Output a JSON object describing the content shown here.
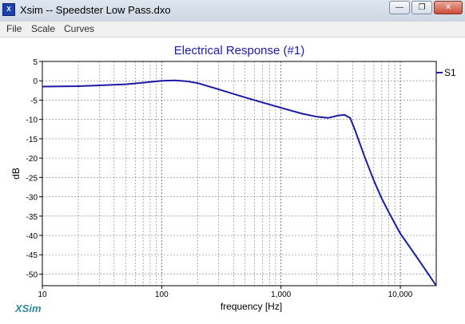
{
  "window": {
    "title": "Xsim -- Speedster Low Pass.dxo",
    "icon": "xsim-app-icon",
    "controls": [
      "minimize-icon",
      "restore-icon",
      "close-icon"
    ]
  },
  "menu": {
    "items": [
      {
        "label": "File"
      },
      {
        "label": "Scale"
      },
      {
        "label": "Curves"
      }
    ]
  },
  "brand": "XSim",
  "chart_data": {
    "type": "line",
    "title": "Electrical Response (#1)",
    "xlabel": "frequency [Hz]",
    "ylabel": "dB",
    "xscale": "log",
    "xlim": [
      10,
      20000
    ],
    "ylim": [
      -53,
      5
    ],
    "x_ticks": [
      {
        "value": 10,
        "label": "10"
      },
      {
        "value": 100,
        "label": "100"
      },
      {
        "value": 1000,
        "label": "1,000"
      },
      {
        "value": 10000,
        "label": "10,000"
      }
    ],
    "y_ticks": [
      5,
      0,
      -5,
      -10,
      -15,
      -20,
      -25,
      -30,
      -35,
      -40,
      -45,
      -50
    ],
    "grid": true,
    "legend_position": "right",
    "series": [
      {
        "name": "S1",
        "color": "#1a1aa6",
        "x": [
          10,
          20,
          30,
          50,
          70,
          100,
          130,
          160,
          200,
          300,
          500,
          700,
          1000,
          1500,
          2000,
          2500,
          3000,
          3400,
          3800,
          4200,
          5000,
          6000,
          7000,
          8000,
          10000,
          12000,
          15000,
          20000
        ],
        "y": [
          -1.5,
          -1.4,
          -1.2,
          -0.9,
          -0.5,
          0.0,
          0.1,
          -0.1,
          -0.6,
          -2.2,
          -4.3,
          -5.6,
          -7.0,
          -8.5,
          -9.3,
          -9.6,
          -9.0,
          -8.8,
          -9.6,
          -13.0,
          -19.5,
          -25.8,
          -30.5,
          -34.0,
          -39.5,
          -43.0,
          -47.3,
          -53.0
        ]
      }
    ]
  }
}
